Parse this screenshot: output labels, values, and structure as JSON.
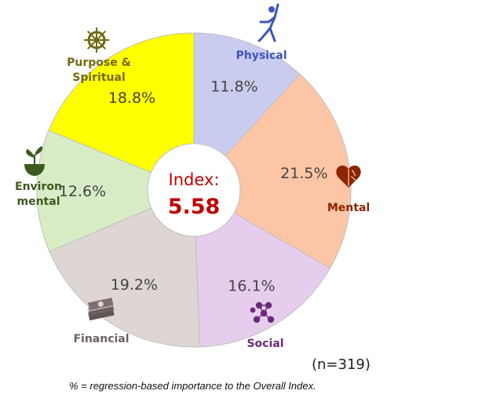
{
  "chart_data": {
    "type": "pie",
    "style": "donut",
    "center": {
      "label": "Index:",
      "value": "5.58"
    },
    "slices": [
      {
        "label": "Physical",
        "value": 11.8,
        "value_label": "11.8%",
        "color": "#c9ccee",
        "label_color": "#3f56b8",
        "icon": "stretching-person-icon"
      },
      {
        "label": "Mental",
        "value": 21.5,
        "value_label": "21.5%",
        "color": "#fcc5a6",
        "label_color": "#8b2500",
        "icon": "heart-brain-icon"
      },
      {
        "label": "Social",
        "value": 16.1,
        "value_label": "16.1%",
        "color": "#e6cdee",
        "label_color": "#6b2a7a",
        "icon": "people-network-icon"
      },
      {
        "label": "Financial",
        "value": 19.2,
        "value_label": "19.2%",
        "color": "#ded6d3",
        "label_color": "#6e6060",
        "icon": "money-stack-icon"
      },
      {
        "label": "Environ\nmental",
        "value": 12.6,
        "value_label": "12.6%",
        "color": "#d8ecc6",
        "label_color": "#3f5a1e",
        "icon": "plant-bowl-icon"
      },
      {
        "label": "Purpose &\nSpiritual",
        "value": 18.8,
        "value_label": "18.8%",
        "color": "#ffff00",
        "label_color": "#736a10",
        "icon": "dharma-wheel-icon"
      }
    ]
  },
  "sample_size": "(n=319)",
  "footnote": "% = regression-based importance to the Overall Index."
}
